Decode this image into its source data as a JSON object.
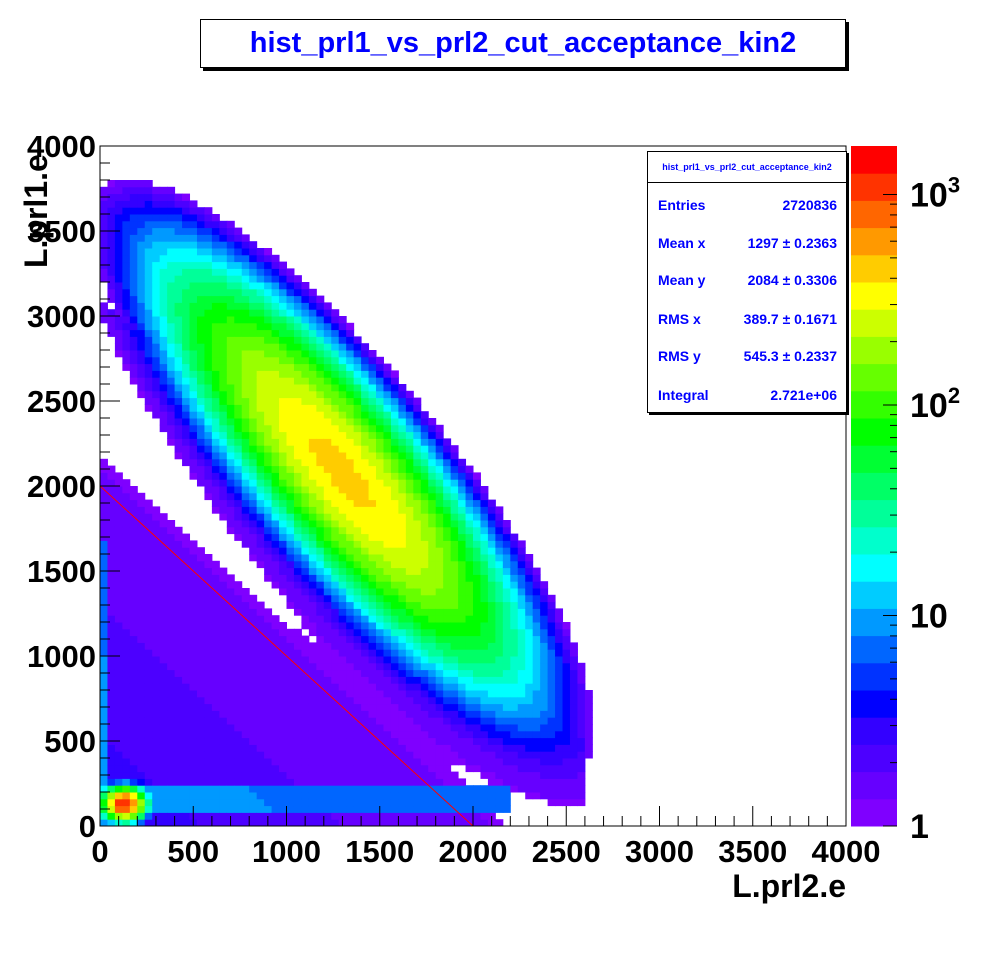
{
  "chart_data": {
    "type": "heatmap",
    "title": "hist_prl1_vs_prl2_cut_acceptance_kin2",
    "xlabel": "L.prl2.e",
    "ylabel": "L.prl1.e",
    "xlim": [
      0,
      4000
    ],
    "ylim": [
      0,
      4000
    ],
    "x_ticks": [
      "0",
      "500",
      "1000",
      "1500",
      "2000",
      "2500",
      "3000",
      "3500",
      "4000"
    ],
    "y_ticks": [
      "0",
      "500",
      "1000",
      "1500",
      "2000",
      "2500",
      "3000",
      "3500",
      "4000"
    ],
    "z_scale": "log",
    "zlim": [
      1,
      1700
    ],
    "z_ticks": [
      "1",
      "10",
      "10^2",
      "10^3"
    ],
    "cut_line": {
      "from": [
        0,
        2000
      ],
      "to": [
        2000,
        0
      ],
      "color": "#ff0000"
    },
    "stats": {
      "header": "hist_prl1_vs_prl2_cut_acceptance_kin2",
      "rows": [
        {
          "label": "Entries",
          "value": "2720836"
        },
        {
          "label": "Mean x",
          "value": "1297 ± 0.2363"
        },
        {
          "label": "Mean y",
          "value": "2084 ± 0.3306"
        },
        {
          "label": "RMS x",
          "value": "389.7 ± 0.1671"
        },
        {
          "label": "RMS y",
          "value": "545.3 ± 0.2337"
        },
        {
          "label": "Integral",
          "value": "2.721e+06"
        }
      ]
    }
  },
  "palette": [
    "#7f00ff",
    "#6600ff",
    "#4c00ff",
    "#3300ff",
    "#0000ff",
    "#0033ff",
    "#0066ff",
    "#0099ff",
    "#00ccff",
    "#00ffff",
    "#00ffcc",
    "#00ff99",
    "#00ff66",
    "#00ff33",
    "#00ff00",
    "#33ff00",
    "#66ff00",
    "#99ff00",
    "#ccff00",
    "#ffff00",
    "#ffcc00",
    "#ff9900",
    "#ff6600",
    "#ff3300",
    "#ff0000"
  ]
}
